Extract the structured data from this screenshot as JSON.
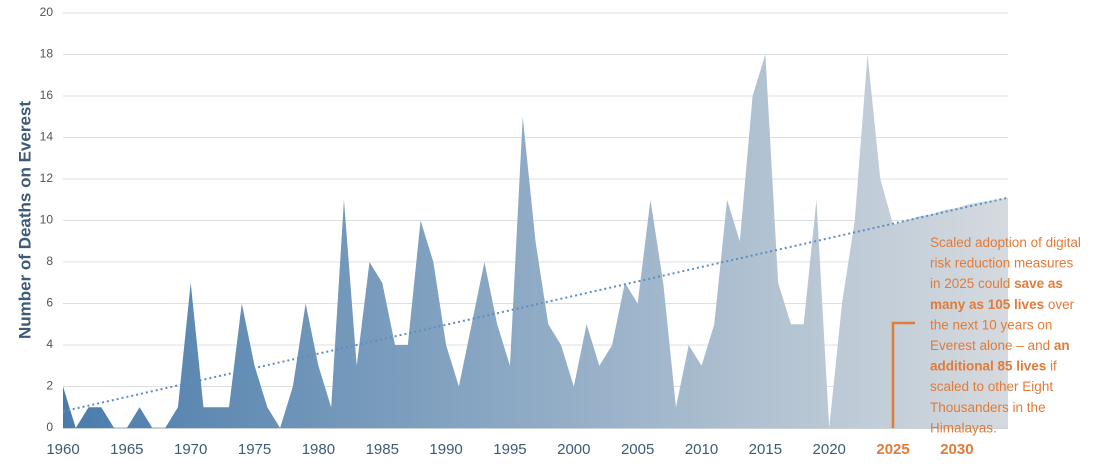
{
  "chart_data": {
    "type": "area",
    "ylabel": "Number of Deaths on Everest",
    "x": [
      1960,
      1961,
      1962,
      1963,
      1964,
      1965,
      1966,
      1967,
      1968,
      1969,
      1970,
      1971,
      1972,
      1973,
      1974,
      1975,
      1976,
      1977,
      1978,
      1979,
      1980,
      1981,
      1982,
      1983,
      1984,
      1985,
      1986,
      1987,
      1988,
      1989,
      1990,
      1991,
      1992,
      1993,
      1994,
      1995,
      1996,
      1997,
      1998,
      1999,
      2000,
      2001,
      2002,
      2003,
      2004,
      2005,
      2006,
      2007,
      2008,
      2009,
      2010,
      2011,
      2012,
      2013,
      2014,
      2015,
      2016,
      2017,
      2018,
      2019,
      2020,
      2021,
      2022,
      2023,
      2024,
      2025,
      2026,
      2027,
      2028,
      2029,
      2030,
      2031,
      2032,
      2033,
      2034
    ],
    "series": [
      {
        "gradient": [
          "#4a7cab",
          "#d5dadf"
        ],
        "values": [
          2,
          0,
          1,
          1,
          0,
          0,
          1,
          0,
          0,
          1,
          7,
          1,
          1,
          1,
          6,
          3,
          1,
          0,
          2,
          6,
          3,
          1,
          11,
          3,
          8,
          7,
          4,
          4,
          10,
          8,
          4,
          2,
          5,
          8,
          5,
          3,
          15,
          9,
          5,
          4,
          2,
          5,
          3,
          4,
          7,
          6,
          11,
          7,
          1,
          4,
          3,
          5,
          11,
          9,
          16,
          18,
          7,
          5,
          5,
          11,
          0,
          6,
          10,
          18,
          12,
          9.8,
          10,
          10.2,
          10.3,
          10.5,
          10.6,
          10.8,
          10.9,
          11,
          11.1
        ]
      },
      {
        "style": "dotted",
        "color": "#5b8fc2",
        "x": [
          1960,
          2034
        ],
        "values": [
          0.8,
          11.1
        ]
      }
    ],
    "xlim": [
      1960,
      2034
    ],
    "ylim": [
      0,
      20
    ],
    "xticks": [
      1960,
      1965,
      1970,
      1975,
      1980,
      1985,
      1990,
      1995,
      2000,
      2005,
      2010,
      2015,
      2020,
      2025,
      2030
    ],
    "highlighted_xticks": [
      2025,
      2030
    ],
    "highlight_color": "#e07b39",
    "yticks": [
      0,
      2,
      4,
      6,
      8,
      10,
      12,
      14,
      16,
      18,
      20
    ],
    "grid": true,
    "annotation": [
      [
        {
          "text": "Scaled adoption of digital",
          "bold": false
        }
      ],
      [
        {
          "text": "risk reduction measures",
          "bold": false
        }
      ],
      [
        {
          "text": "in 2025 could ",
          "bold": false
        },
        {
          "text": "save as",
          "bold": true
        }
      ],
      [
        {
          "text": "many as 105 lives",
          "bold": true
        },
        {
          "text": " over",
          "bold": false
        }
      ],
      [
        {
          "text": "the next 10 years on",
          "bold": false
        }
      ],
      [
        {
          "text": "Everest alone – and ",
          "bold": false
        },
        {
          "text": "an",
          "bold": true
        }
      ],
      [
        {
          "text": "additional 85 lives",
          "bold": true
        },
        {
          "text": " if",
          "bold": false
        }
      ],
      [
        {
          "text": "scaled to other Eight",
          "bold": false
        }
      ],
      [
        {
          "text": "Thousanders in the",
          "bold": false
        }
      ],
      [
        {
          "text": "Himalayas.",
          "bold": false
        }
      ]
    ]
  }
}
